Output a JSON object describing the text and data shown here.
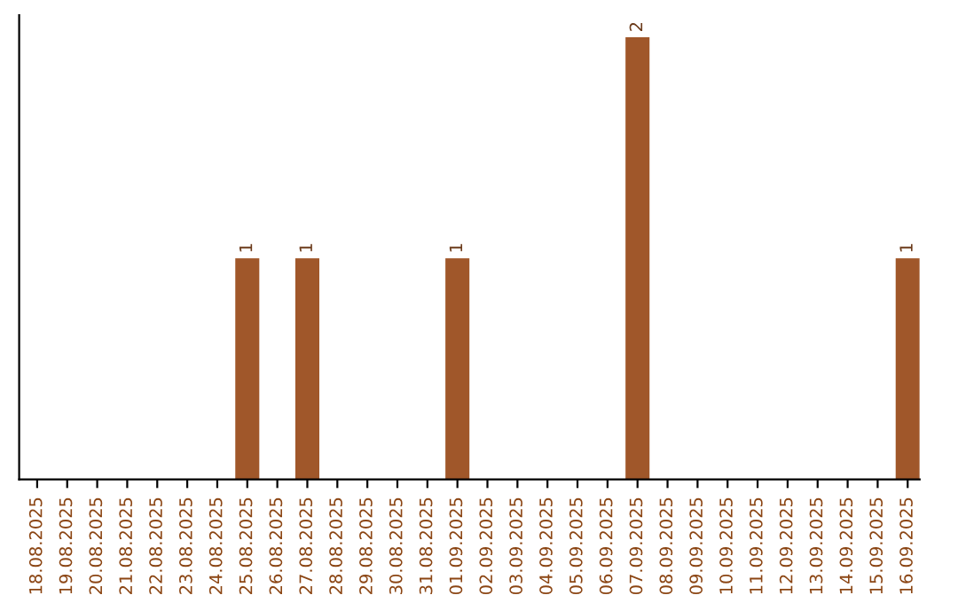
{
  "chart_data": {
    "type": "bar",
    "categories": [
      "18.08.2025",
      "19.08.2025",
      "20.08.2025",
      "21.08.2025",
      "22.08.2025",
      "23.08.2025",
      "24.08.2025",
      "25.08.2025",
      "26.08.2025",
      "27.08.2025",
      "28.08.2025",
      "29.08.2025",
      "30.08.2025",
      "31.08.2025",
      "01.09.2025",
      "02.09.2025",
      "03.09.2025",
      "04.09.2025",
      "05.09.2025",
      "06.09.2025",
      "07.09.2025",
      "08.09.2025",
      "09.09.2025",
      "10.09.2025",
      "11.09.2025",
      "12.09.2025",
      "13.09.2025",
      "14.09.2025",
      "15.09.2025",
      "16.09.2025"
    ],
    "values": [
      0,
      0,
      0,
      0,
      0,
      0,
      0,
      1,
      0,
      1,
      0,
      0,
      0,
      0,
      1,
      0,
      0,
      0,
      0,
      0,
      2,
      0,
      0,
      0,
      0,
      0,
      0,
      0,
      0,
      1
    ],
    "value_labels": [
      null,
      null,
      null,
      null,
      null,
      null,
      null,
      "1",
      null,
      "1",
      null,
      null,
      null,
      null,
      "1",
      null,
      null,
      null,
      null,
      null,
      "2",
      null,
      null,
      null,
      null,
      null,
      null,
      null,
      null,
      "1"
    ],
    "color": "#a0572a",
    "grid": false,
    "legend": false
  }
}
